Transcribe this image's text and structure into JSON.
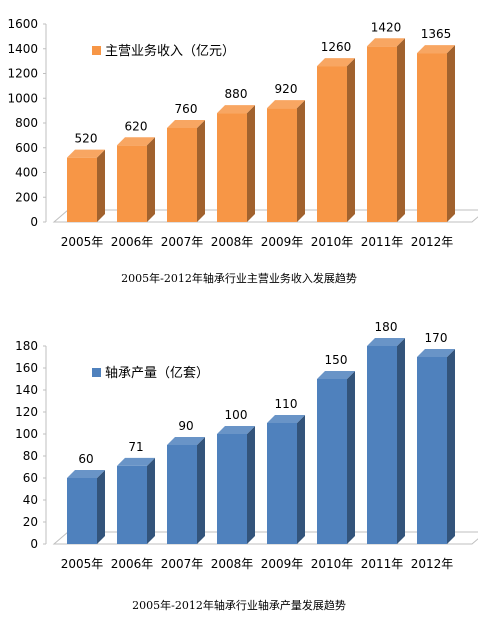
{
  "chart_data": [
    {
      "type": "bar",
      "categories": [
        "2005年",
        "2006年",
        "2007年",
        "2008年",
        "2009年",
        "2010年",
        "2011年",
        "2012年"
      ],
      "series": [
        {
          "name": "主营业务收入（亿元）",
          "values": [
            520,
            620,
            760,
            880,
            920,
            1260,
            1420,
            1365
          ],
          "color": "#F79646"
        }
      ],
      "ylim": [
        0,
        1600
      ],
      "yticks": [
        0,
        200,
        400,
        600,
        800,
        1000,
        1200,
        1400,
        1600
      ],
      "legend": "top-left",
      "grid": false,
      "style": "3d",
      "caption": "2005年-2012年轴承行业主营业务收入发展趋势"
    },
    {
      "type": "bar",
      "categories": [
        "2005年",
        "2006年",
        "2007年",
        "2008年",
        "2009年",
        "2010年",
        "2011年",
        "2012年"
      ],
      "series": [
        {
          "name": "轴承产量（亿套）",
          "values": [
            60,
            71,
            90,
            100,
            110,
            150,
            180,
            170
          ],
          "color": "#4F81BD"
        }
      ],
      "ylim": [
        0,
        180
      ],
      "yticks": [
        0,
        20,
        40,
        60,
        80,
        100,
        120,
        140,
        160,
        180
      ],
      "legend": "top-left",
      "grid": false,
      "style": "3d",
      "caption": "2005年-2012年轴承行业轴承产量发展趋势"
    }
  ]
}
